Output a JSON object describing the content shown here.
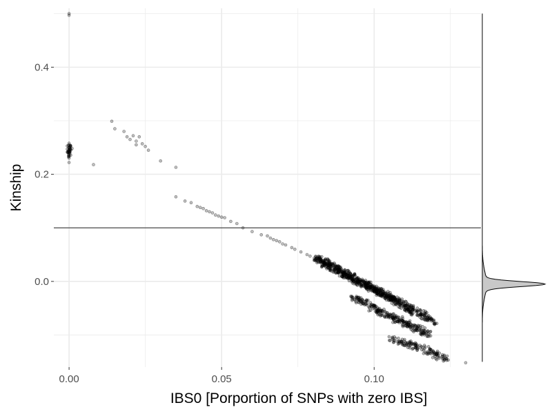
{
  "chart_data": {
    "type": "scatter",
    "title": "",
    "xlabel": "IBS0 [Porportion of SNPs with zero IBS]",
    "ylabel": "Kinship",
    "xlim": [
      -0.005,
      0.135
    ],
    "ylim": [
      -0.16,
      0.51
    ],
    "x_ticks": [
      {
        "value": 0.0,
        "label": "0.00"
      },
      {
        "value": 0.05,
        "label": "0.05"
      },
      {
        "value": 0.1,
        "label": "0.10"
      }
    ],
    "y_ticks": [
      {
        "value": 0.0,
        "label": "0.0"
      },
      {
        "value": 0.2,
        "label": "0.2"
      },
      {
        "value": 0.4,
        "label": "0.4"
      }
    ],
    "grid": true,
    "reference_line": {
      "orientation": "horizontal",
      "y": 0.1
    },
    "marginal_density": {
      "axis": "y",
      "side": "right",
      "mode": -0.005
    },
    "colors": {
      "points": "#000000",
      "grid": "#ebebeb",
      "line": "#333333",
      "density_fill": "#c8c8c8"
    },
    "series": [
      {
        "points": [
          [
            0.0,
            0.5
          ],
          [
            0.0,
            0.497
          ],
          [
            0.0,
            0.25
          ],
          [
            0.0,
            0.245
          ],
          [
            0.0,
            0.24
          ],
          [
            0.0,
            0.235
          ],
          [
            0.0,
            0.255
          ],
          [
            0.0,
            0.258
          ],
          [
            0.0,
            0.23
          ],
          [
            0.0,
            0.222
          ],
          [
            0.001,
            0.248
          ],
          [
            0.0005,
            0.252
          ],
          [
            0.008,
            0.218
          ],
          [
            0.014,
            0.299
          ],
          [
            0.015,
            0.285
          ],
          [
            0.018,
            0.28
          ],
          [
            0.019,
            0.27
          ],
          [
            0.02,
            0.265
          ],
          [
            0.021,
            0.272
          ],
          [
            0.022,
            0.262
          ],
          [
            0.022,
            0.255
          ],
          [
            0.023,
            0.27
          ],
          [
            0.024,
            0.257
          ],
          [
            0.025,
            0.252
          ],
          [
            0.026,
            0.245
          ],
          [
            0.03,
            0.225
          ],
          [
            0.035,
            0.213
          ],
          [
            0.035,
            0.158
          ],
          [
            0.038,
            0.15
          ],
          [
            0.04,
            0.147
          ],
          [
            0.042,
            0.14
          ],
          [
            0.043,
            0.138
          ],
          [
            0.044,
            0.136
          ],
          [
            0.045,
            0.132
          ],
          [
            0.046,
            0.13
          ],
          [
            0.047,
            0.128
          ],
          [
            0.048,
            0.124
          ],
          [
            0.049,
            0.122
          ],
          [
            0.05,
            0.12
          ],
          [
            0.051,
            0.119
          ],
          [
            0.053,
            0.112
          ],
          [
            0.055,
            0.108
          ],
          [
            0.057,
            0.1
          ],
          [
            0.06,
            0.093
          ],
          [
            0.063,
            0.087
          ],
          [
            0.065,
            0.085
          ],
          [
            0.066,
            0.081
          ],
          [
            0.067,
            0.078
          ],
          [
            0.068,
            0.076
          ],
          [
            0.069,
            0.074
          ],
          [
            0.07,
            0.07
          ],
          [
            0.071,
            0.068
          ],
          [
            0.073,
            0.063
          ],
          [
            0.074,
            0.06
          ],
          [
            0.076,
            0.055
          ],
          [
            0.078,
            0.05
          ],
          [
            0.079,
            0.047
          ],
          [
            0.081,
            0.043
          ],
          [
            0.082,
            0.04
          ],
          [
            0.083,
            0.037
          ],
          [
            0.084,
            0.034
          ],
          [
            0.085,
            0.03
          ],
          [
            0.086,
            0.028
          ],
          [
            0.087,
            0.025
          ],
          [
            0.088,
            0.022
          ],
          [
            0.089,
            0.018
          ],
          [
            0.09,
            0.015
          ],
          [
            0.091,
            0.012
          ],
          [
            0.092,
            0.01
          ],
          [
            0.093,
            0.006
          ],
          [
            0.094,
            0.003
          ],
          [
            0.095,
            0.0
          ],
          [
            0.096,
            -0.003
          ],
          [
            0.097,
            -0.006
          ],
          [
            0.098,
            -0.008
          ],
          [
            0.099,
            -0.012
          ],
          [
            0.1,
            -0.015
          ],
          [
            0.101,
            -0.018
          ],
          [
            0.102,
            -0.02
          ],
          [
            0.103,
            -0.023
          ],
          [
            0.104,
            -0.027
          ],
          [
            0.105,
            -0.03
          ],
          [
            0.106,
            -0.033
          ],
          [
            0.107,
            -0.036
          ],
          [
            0.108,
            -0.04
          ],
          [
            0.11,
            -0.045
          ],
          [
            0.111,
            -0.048
          ],
          [
            0.112,
            -0.052
          ],
          [
            0.114,
            -0.058
          ],
          [
            0.116,
            -0.062
          ],
          [
            0.118,
            -0.07
          ],
          [
            0.12,
            -0.078
          ],
          [
            0.093,
            -0.03
          ],
          [
            0.095,
            -0.035
          ],
          [
            0.097,
            -0.042
          ],
          [
            0.1,
            -0.05
          ],
          [
            0.102,
            -0.055
          ],
          [
            0.104,
            -0.062
          ],
          [
            0.106,
            -0.068
          ],
          [
            0.108,
            -0.072
          ],
          [
            0.11,
            -0.078
          ],
          [
            0.112,
            -0.082
          ],
          [
            0.114,
            -0.088
          ],
          [
            0.116,
            -0.095
          ],
          [
            0.118,
            -0.1
          ],
          [
            0.106,
            -0.108
          ],
          [
            0.109,
            -0.112
          ],
          [
            0.112,
            -0.118
          ],
          [
            0.115,
            -0.124
          ],
          [
            0.118,
            -0.13
          ],
          [
            0.121,
            -0.138
          ],
          [
            0.123,
            -0.147
          ],
          [
            0.13,
            -0.152
          ]
        ]
      }
    ]
  }
}
